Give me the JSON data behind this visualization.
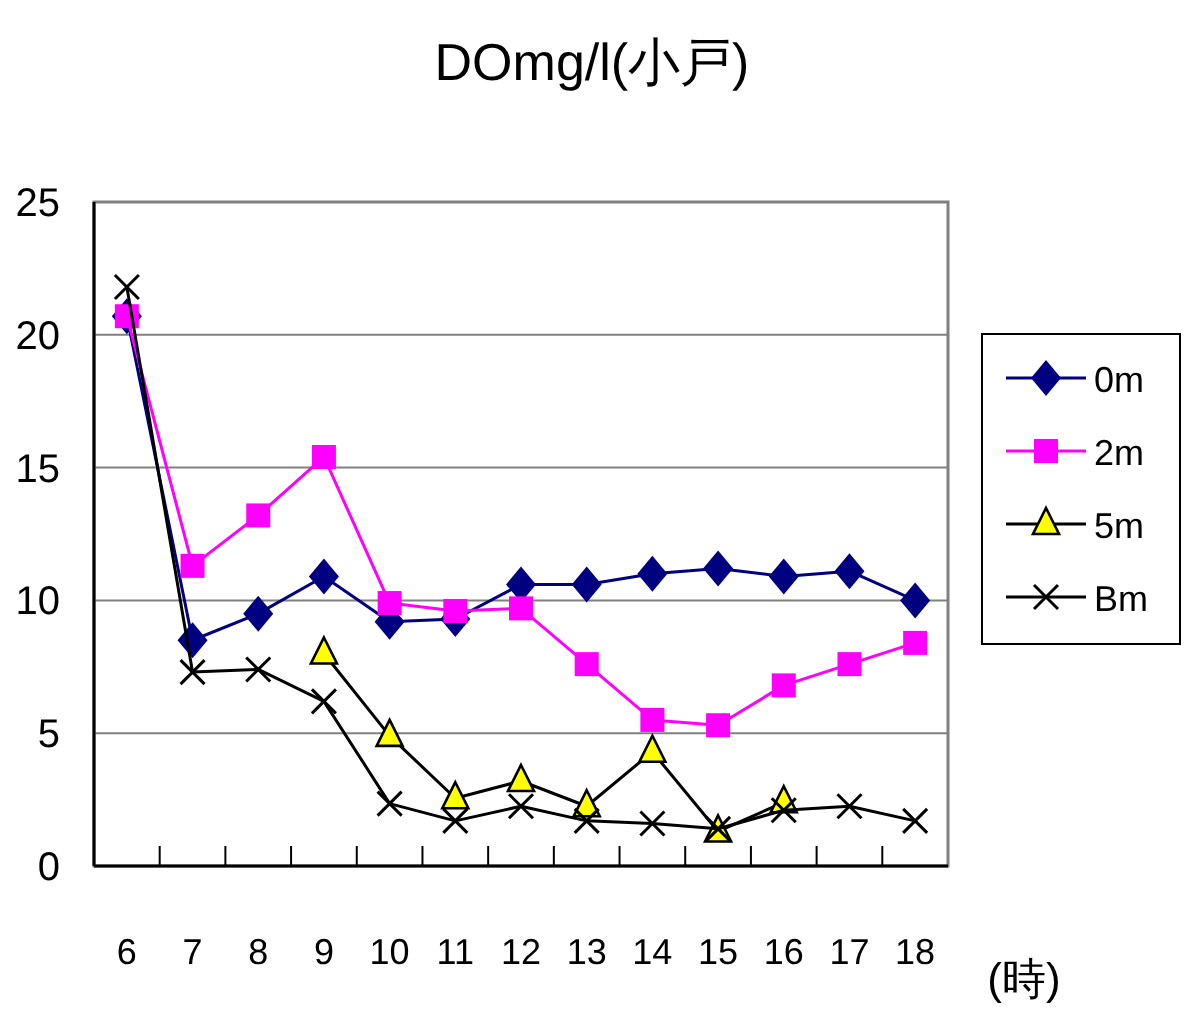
{
  "chart_data": {
    "type": "line",
    "title": "DOmg/l(小戸)",
    "xlabel": "(時)",
    "categories": [
      "6",
      "7",
      "8",
      "9",
      "10",
      "11",
      "12",
      "13",
      "14",
      "15",
      "16",
      "17",
      "18"
    ],
    "ylim": [
      0,
      25
    ],
    "yticks": [
      0,
      5,
      10,
      15,
      20,
      25
    ],
    "grid": "y",
    "legend": "right",
    "series": [
      {
        "name": "0m",
        "color": "#000080",
        "marker": "diamond",
        "values": [
          20.7,
          8.5,
          9.5,
          10.9,
          9.2,
          9.3,
          10.6,
          10.6,
          11.0,
          11.2,
          10.9,
          11.1,
          10.0
        ]
      },
      {
        "name": "2m",
        "color": "#ff00ff",
        "marker": "square",
        "values": [
          20.7,
          11.3,
          13.2,
          15.4,
          9.9,
          9.6,
          9.7,
          7.6,
          5.5,
          5.3,
          6.8,
          7.6,
          8.4
        ]
      },
      {
        "name": "5m",
        "color": "#000000",
        "marker": "triangle",
        "values": [
          null,
          null,
          null,
          8.0,
          4.9,
          2.55,
          3.2,
          2.25,
          4.3,
          1.3,
          2.4,
          null,
          null
        ]
      },
      {
        "name": "Bm",
        "color": "#000000",
        "marker": "cross",
        "values": [
          21.8,
          7.3,
          7.4,
          6.2,
          2.35,
          1.7,
          2.25,
          1.7,
          1.6,
          1.4,
          2.1,
          2.25,
          1.7
        ]
      }
    ]
  }
}
